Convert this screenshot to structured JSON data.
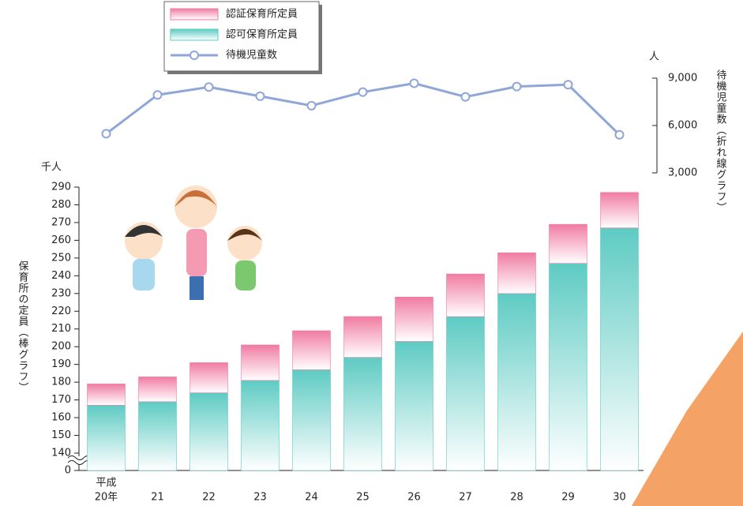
{
  "chart_data": {
    "type": "bar_line",
    "categories": [
      "20年",
      "21",
      "22",
      "23",
      "24",
      "25",
      "26",
      "27",
      "28",
      "29",
      "30"
    ],
    "era_label": "平成",
    "y_unit": "千人",
    "y2_unit": "人",
    "y_label": "保育所の定員（棒グラフ）",
    "y2_label": "待機児童数（折れ線グラフ）",
    "ylim": [
      0,
      290
    ],
    "axis_break": [
      0,
      140
    ],
    "yticks": [
      0,
      140,
      150,
      160,
      170,
      180,
      190,
      200,
      210,
      220,
      230,
      240,
      250,
      260,
      270,
      280,
      290
    ],
    "y2lim": [
      3000,
      9000
    ],
    "y2ticks": [
      {
        "value": 3000,
        "label": "3,000"
      },
      {
        "value": 6000,
        "label": "6,000"
      },
      {
        "value": 9000,
        "label": "9,000"
      }
    ],
    "series": [
      {
        "name": "認可保育所定員",
        "color": "#5ecbc3",
        "stack": true,
        "values": [
          167,
          169,
          174,
          181,
          187,
          194,
          203,
          217,
          230,
          247,
          267
        ]
      },
      {
        "name": "認証保育所定員",
        "color": "#f07ca2",
        "stack": true,
        "values": [
          12,
          14,
          17,
          20,
          22,
          23,
          25,
          24,
          23,
          22,
          20
        ]
      },
      {
        "name": "待機児童数",
        "color": "#8fa6d8",
        "axis": "y2",
        "values": [
          5479,
          7939,
          8435,
          7855,
          7257,
          8117,
          8672,
          7814,
          8466,
          8586,
          5414
        ]
      }
    ],
    "legend": "top-left"
  }
}
